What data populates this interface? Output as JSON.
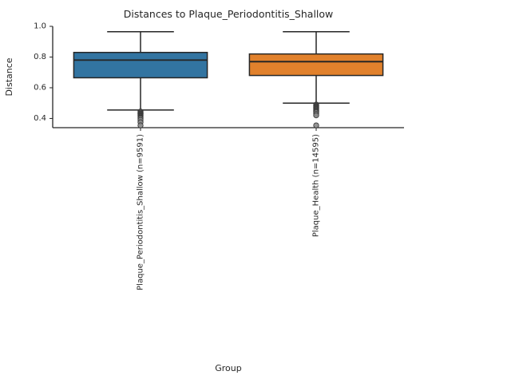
{
  "chart_data": {
    "type": "box",
    "title": "Distances to Plaque_Periodontitis_Shallow",
    "xlabel": "Group",
    "ylabel": "Distance",
    "ylim": [
      0.34,
      1.0
    ],
    "yticks": [
      0.4,
      0.6,
      0.8,
      1.0
    ],
    "grid": false,
    "axis_color": "#262626",
    "text_color": "#262626",
    "outlier_fill": "#8a8a8a",
    "outlier_edge": "#3a3a3a",
    "groups": [
      {
        "label": "Plaque_Periodontitis_Shallow (n=9591)",
        "color": "#3274a1",
        "q1": 0.665,
        "median": 0.78,
        "q3": 0.83,
        "whisker_low": 0.455,
        "whisker_high": 0.965,
        "outliers": [
          0.445,
          0.44,
          0.435,
          0.43,
          0.43,
          0.425,
          0.42,
          0.42,
          0.415,
          0.41,
          0.405,
          0.4,
          0.39,
          0.375,
          0.355
        ]
      },
      {
        "label": "Plaque_Health (n=14595)",
        "color": "#e1812c",
        "q1": 0.68,
        "median": 0.77,
        "q3": 0.82,
        "whisker_low": 0.5,
        "whisker_high": 0.965,
        "outliers": [
          0.49,
          0.49,
          0.485,
          0.48,
          0.48,
          0.475,
          0.47,
          0.47,
          0.465,
          0.46,
          0.455,
          0.45,
          0.445,
          0.44,
          0.43,
          0.42,
          0.355
        ]
      }
    ]
  }
}
